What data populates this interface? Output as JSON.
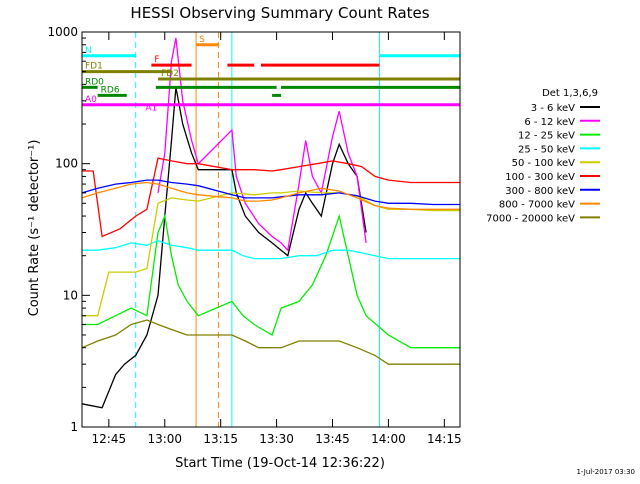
{
  "chart_data": {
    "type": "line",
    "title": "HESSI Observing Summary Count Rates",
    "xlabel": "Start Time (19-Oct-14 12:36:22)",
    "ylabel": "Count Rate (s⁻¹ detector⁻¹)",
    "footer_stamp": "1-Jul-2017 03:30",
    "yscale": "log",
    "ylim": [
      1,
      1000
    ],
    "xlim_minutes": [
      12.63,
      14.32
    ],
    "x_tick_labels": [
      "12:45",
      "13:00",
      "13:15",
      "13:30",
      "13:45",
      "14:00",
      "14:15"
    ],
    "x_tick_minutes": [
      12.75,
      13.0,
      13.25,
      13.5,
      13.75,
      14.0,
      14.25
    ],
    "y_tick_labels": [
      "1",
      "10",
      "100",
      "1000"
    ],
    "y_tick_values": [
      1,
      10,
      100,
      1000
    ],
    "legend_title": "Det 1,3,6,9",
    "legend_placement": "right",
    "series": [
      {
        "name": "3 - 6 keV",
        "color": "#000000",
        "points": [
          [
            12.63,
            1.5
          ],
          [
            12.72,
            1.4
          ],
          [
            12.78,
            2.5
          ],
          [
            12.82,
            3
          ],
          [
            12.87,
            3.5
          ],
          [
            12.92,
            5
          ],
          [
            12.97,
            10
          ],
          [
            13.0,
            40
          ],
          [
            13.03,
            150
          ],
          [
            13.05,
            380
          ],
          [
            13.08,
            200
          ],
          [
            13.12,
            120
          ],
          [
            13.15,
            90
          ],
          [
            13.3,
            90
          ],
          [
            13.32,
            60
          ],
          [
            13.36,
            40
          ],
          [
            13.42,
            30
          ],
          [
            13.48,
            25
          ],
          [
            13.52,
            22
          ],
          [
            13.55,
            20
          ],
          [
            13.6,
            45
          ],
          [
            13.63,
            60
          ],
          [
            13.66,
            50
          ],
          [
            13.7,
            40
          ],
          [
            13.75,
            100
          ],
          [
            13.78,
            140
          ],
          [
            13.82,
            100
          ],
          [
            13.86,
            80
          ],
          [
            13.9,
            30
          ]
        ]
      },
      {
        "name": "6 - 12 keV",
        "color": "#ff00ff",
        "points": [
          [
            12.97,
            60
          ],
          [
            13.0,
            120
          ],
          [
            13.03,
            600
          ],
          [
            13.05,
            900
          ],
          [
            13.08,
            300
          ],
          [
            13.12,
            150
          ],
          [
            13.15,
            100
          ],
          [
            13.3,
            180
          ],
          [
            13.32,
            80
          ],
          [
            13.36,
            50
          ],
          [
            13.42,
            35
          ],
          [
            13.48,
            28
          ],
          [
            13.52,
            25
          ],
          [
            13.55,
            22
          ],
          [
            13.6,
            70
          ],
          [
            13.63,
            150
          ],
          [
            13.66,
            80
          ],
          [
            13.7,
            60
          ],
          [
            13.75,
            160
          ],
          [
            13.78,
            250
          ],
          [
            13.82,
            120
          ],
          [
            13.86,
            80
          ],
          [
            13.9,
            25
          ]
        ]
      },
      {
        "name": "12 - 25 keV",
        "color": "#00ee00",
        "points": [
          [
            12.63,
            6
          ],
          [
            12.7,
            6
          ],
          [
            12.78,
            7
          ],
          [
            12.85,
            8
          ],
          [
            12.92,
            7
          ],
          [
            12.97,
            30
          ],
          [
            13.0,
            40
          ],
          [
            13.03,
            20
          ],
          [
            13.06,
            12
          ],
          [
            13.1,
            9
          ],
          [
            13.15,
            7
          ],
          [
            13.3,
            9
          ],
          [
            13.35,
            7
          ],
          [
            13.4,
            6
          ],
          [
            13.48,
            5
          ],
          [
            13.52,
            8
          ],
          [
            13.6,
            9
          ],
          [
            13.66,
            12
          ],
          [
            13.72,
            20
          ],
          [
            13.78,
            40
          ],
          [
            13.82,
            20
          ],
          [
            13.86,
            10
          ],
          [
            13.9,
            7
          ],
          [
            14.0,
            5
          ],
          [
            14.1,
            4
          ],
          [
            14.2,
            4
          ],
          [
            14.32,
            4
          ]
        ]
      },
      {
        "name": "25 - 50 keV",
        "color": "#00ffff",
        "points": [
          [
            12.63,
            22
          ],
          [
            12.7,
            22
          ],
          [
            12.78,
            23
          ],
          [
            12.85,
            25
          ],
          [
            12.92,
            24
          ],
          [
            12.97,
            26
          ],
          [
            13.03,
            24
          ],
          [
            13.1,
            23
          ],
          [
            13.15,
            22
          ],
          [
            13.3,
            22
          ],
          [
            13.35,
            20
          ],
          [
            13.4,
            19
          ],
          [
            13.48,
            19
          ],
          [
            13.52,
            19
          ],
          [
            13.6,
            20
          ],
          [
            13.68,
            20
          ],
          [
            13.75,
            22
          ],
          [
            13.82,
            22
          ],
          [
            13.88,
            21
          ],
          [
            13.94,
            20
          ],
          [
            14.0,
            19
          ],
          [
            14.1,
            19
          ],
          [
            14.2,
            19
          ],
          [
            14.32,
            19
          ]
        ]
      },
      {
        "name": "50 - 100 keV",
        "color": "#cccc00",
        "points": [
          [
            12.63,
            7
          ],
          [
            12.7,
            7
          ],
          [
            12.75,
            15
          ],
          [
            12.8,
            15
          ],
          [
            12.87,
            15
          ],
          [
            12.92,
            16
          ],
          [
            12.97,
            50
          ],
          [
            13.03,
            55
          ],
          [
            13.1,
            53
          ],
          [
            13.15,
            52
          ],
          [
            13.3,
            60
          ],
          [
            13.4,
            58
          ],
          [
            13.48,
            60
          ],
          [
            13.52,
            60
          ],
          [
            13.6,
            62
          ],
          [
            13.7,
            60
          ],
          [
            13.78,
            60
          ],
          [
            13.86,
            57
          ],
          [
            13.94,
            48
          ],
          [
            14.0,
            45
          ],
          [
            14.1,
            45
          ],
          [
            14.2,
            44
          ],
          [
            14.32,
            44
          ]
        ]
      },
      {
        "name": "100 - 300 keV",
        "color": "#ff0000",
        "points": [
          [
            12.63,
            88
          ],
          [
            12.68,
            88
          ],
          [
            12.72,
            28
          ],
          [
            12.8,
            32
          ],
          [
            12.87,
            40
          ],
          [
            12.92,
            45
          ],
          [
            12.97,
            110
          ],
          [
            13.03,
            105
          ],
          [
            13.1,
            100
          ],
          [
            13.15,
            100
          ],
          [
            13.3,
            90
          ],
          [
            13.4,
            90
          ],
          [
            13.48,
            88
          ],
          [
            13.52,
            90
          ],
          [
            13.6,
            95
          ],
          [
            13.68,
            100
          ],
          [
            13.75,
            105
          ],
          [
            13.82,
            100
          ],
          [
            13.88,
            95
          ],
          [
            13.94,
            80
          ],
          [
            14.0,
            75
          ],
          [
            14.1,
            72
          ],
          [
            14.2,
            72
          ],
          [
            14.32,
            72
          ]
        ]
      },
      {
        "name": "300 - 800 keV",
        "color": "#0000ff",
        "points": [
          [
            12.63,
            60
          ],
          [
            12.7,
            65
          ],
          [
            12.78,
            70
          ],
          [
            12.85,
            72
          ],
          [
            12.92,
            75
          ],
          [
            12.97,
            75
          ],
          [
            13.03,
            72
          ],
          [
            13.1,
            70
          ],
          [
            13.15,
            68
          ],
          [
            13.3,
            58
          ],
          [
            13.36,
            55
          ],
          [
            13.42,
            55
          ],
          [
            13.48,
            55
          ],
          [
            13.52,
            56
          ],
          [
            13.6,
            58
          ],
          [
            13.7,
            58
          ],
          [
            13.78,
            60
          ],
          [
            13.86,
            57
          ],
          [
            13.94,
            52
          ],
          [
            14.0,
            50
          ],
          [
            14.1,
            50
          ],
          [
            14.2,
            49
          ],
          [
            14.32,
            49
          ]
        ]
      },
      {
        "name": "800 - 7000 keV",
        "color": "#ff8800",
        "points": [
          [
            12.63,
            55
          ],
          [
            12.7,
            60
          ],
          [
            12.78,
            65
          ],
          [
            12.85,
            70
          ],
          [
            12.92,
            72
          ],
          [
            12.97,
            70
          ],
          [
            13.03,
            65
          ],
          [
            13.1,
            60
          ],
          [
            13.15,
            58
          ],
          [
            13.3,
            55
          ],
          [
            13.36,
            52
          ],
          [
            13.42,
            52
          ],
          [
            13.48,
            53
          ],
          [
            13.52,
            55
          ],
          [
            13.6,
            60
          ],
          [
            13.7,
            65
          ],
          [
            13.78,
            62
          ],
          [
            13.86,
            55
          ],
          [
            13.94,
            48
          ],
          [
            14.0,
            46
          ],
          [
            14.1,
            45
          ],
          [
            14.2,
            45
          ],
          [
            14.32,
            45
          ]
        ]
      },
      {
        "name": "7000 - 20000 keV",
        "color": "#808000",
        "points": [
          [
            12.63,
            4
          ],
          [
            12.7,
            4.5
          ],
          [
            12.78,
            5
          ],
          [
            12.85,
            6
          ],
          [
            12.92,
            6.5
          ],
          [
            12.97,
            6
          ],
          [
            13.03,
            5.5
          ],
          [
            13.1,
            5
          ],
          [
            13.15,
            5
          ],
          [
            13.3,
            5
          ],
          [
            13.36,
            4.5
          ],
          [
            13.42,
            4
          ],
          [
            13.48,
            4
          ],
          [
            13.52,
            4
          ],
          [
            13.6,
            4.5
          ],
          [
            13.7,
            4.5
          ],
          [
            13.78,
            4.5
          ],
          [
            13.86,
            4
          ],
          [
            13.94,
            3.5
          ],
          [
            14.0,
            3
          ],
          [
            14.1,
            3
          ],
          [
            14.2,
            3
          ],
          [
            14.32,
            3
          ]
        ]
      }
    ],
    "flag_bars": [
      {
        "label": "N",
        "color": "#00ffff",
        "level": 660,
        "segments": [
          [
            12.63,
            12.87
          ],
          [
            13.96,
            14.32
          ]
        ]
      },
      {
        "label": "S",
        "color": "#ff8800",
        "level": 800,
        "segments": [
          [
            13.14,
            13.24
          ]
        ]
      },
      {
        "label": "F",
        "color": "#ff0000",
        "level": 560,
        "segments": [
          [
            12.94,
            13.12
          ],
          [
            13.28,
            13.4
          ],
          [
            13.43,
            13.96
          ]
        ]
      },
      {
        "label": "FD1",
        "color": "#808000",
        "level": 500,
        "segments": [
          [
            12.63,
            13.03
          ]
        ]
      },
      {
        "label": "FD2",
        "color": "#808000",
        "level": 440,
        "segments": [
          [
            12.97,
            14.32
          ]
        ]
      },
      {
        "label": "RD0",
        "color": "#008800",
        "level": 380,
        "segments": [
          [
            12.63,
            12.7
          ],
          [
            12.96,
            13.5
          ],
          [
            13.52,
            14.32
          ]
        ]
      },
      {
        "label": "RD6",
        "color": "#008800",
        "level": 330,
        "segments": [
          [
            12.7,
            12.83
          ],
          [
            13.48,
            13.52
          ]
        ]
      },
      {
        "label": "A0",
        "color": "#ff00ff",
        "level": 280,
        "segments": [
          [
            12.63,
            14.32
          ]
        ]
      },
      {
        "label": "A1",
        "color": "#ff00ff",
        "level": 240,
        "segments": []
      }
    ],
    "vertical_lines": [
      {
        "color": "#00ffff",
        "style": "solid",
        "x": 12.63
      },
      {
        "color": "#00ffff",
        "style": "dashed",
        "x": 12.87
      },
      {
        "color": "#ff8800",
        "style": "solid",
        "x": 13.14
      },
      {
        "color": "#ff8800",
        "style": "dashed",
        "x": 13.24
      },
      {
        "color": "#00ffff",
        "style": "solid",
        "x": 13.3
      },
      {
        "color": "#00ffff",
        "style": "solid",
        "x": 13.96
      },
      {
        "color": "#00ffff",
        "style": "dashed",
        "x": 14.32
      }
    ]
  }
}
